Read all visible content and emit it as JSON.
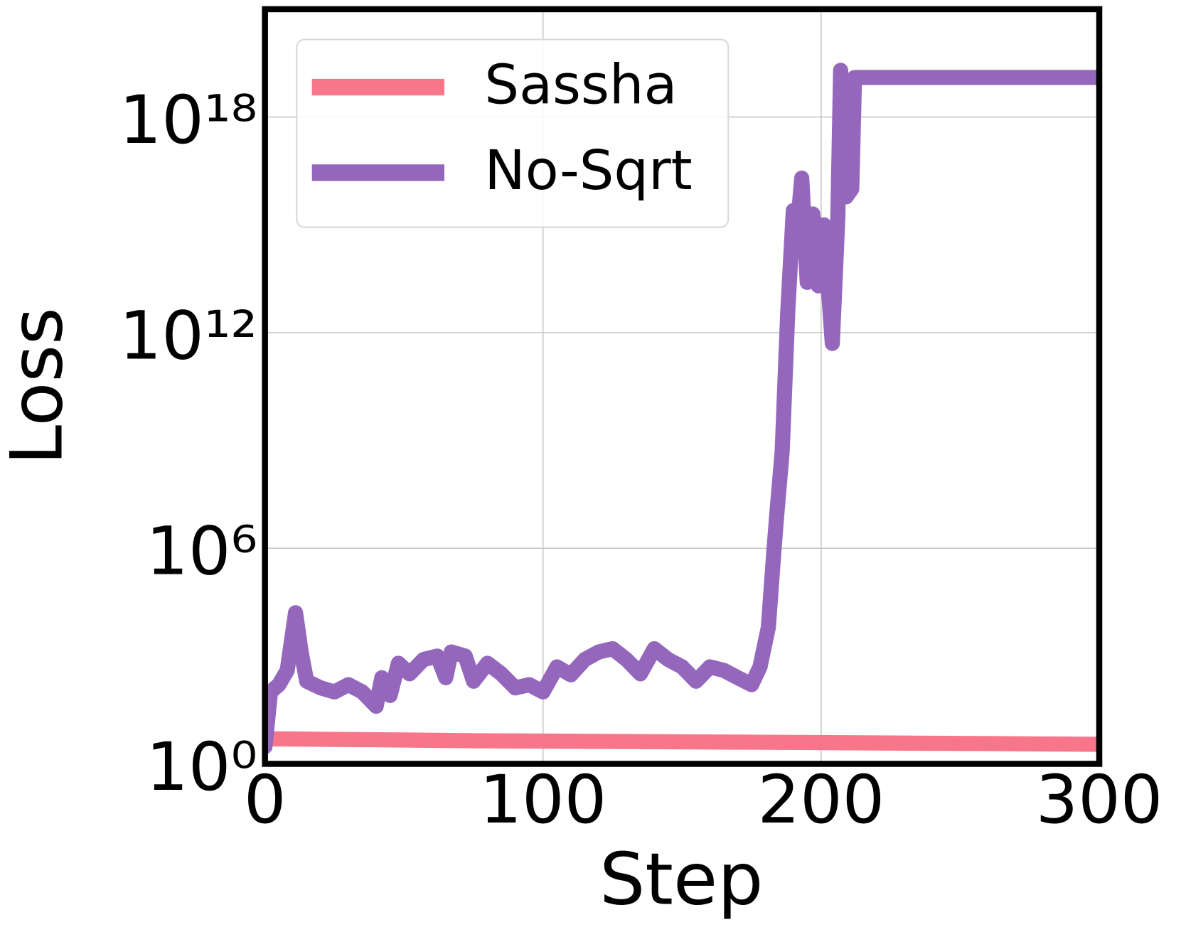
{
  "chart_data": {
    "type": "line",
    "xlabel": "Step",
    "ylabel": "Loss",
    "xlim": [
      0,
      300
    ],
    "xticks": [
      0,
      100,
      200,
      300
    ],
    "ylim": [
      1,
      1e+21
    ],
    "ylog": true,
    "yticks": [
      {
        "value": 1,
        "label": "10⁰"
      },
      {
        "value": 1000000,
        "label": "10⁶"
      },
      {
        "value": 1000000000000,
        "label": "10¹²"
      },
      {
        "value": 1e+18,
        "label": "10¹⁸"
      }
    ],
    "grid": true,
    "legend": "upper left",
    "series": [
      {
        "name": "Sassha",
        "color": "#f7768a",
        "x": [
          0,
          25,
          50,
          75,
          100,
          125,
          150,
          175,
          200,
          225,
          250,
          275,
          300
        ],
        "values": [
          5,
          4.8,
          4.6,
          4.4,
          4.3,
          4.2,
          4.1,
          4,
          3.9,
          3.8,
          3.7,
          3.6,
          3.5
        ]
      },
      {
        "name": "No-Sqrt",
        "color": "#9467bd",
        "x": [
          0,
          2,
          5,
          8,
          11,
          13,
          15,
          20,
          25,
          30,
          35,
          40,
          42,
          45,
          48,
          52,
          57,
          62,
          65,
          67,
          72,
          75,
          80,
          85,
          90,
          95,
          100,
          105,
          110,
          115,
          120,
          125,
          130,
          135,
          140,
          145,
          150,
          155,
          160,
          165,
          170,
          175,
          178,
          181,
          183,
          184,
          186,
          188,
          190,
          191,
          193,
          195,
          197,
          199,
          201,
          204,
          206,
          207,
          209,
          211,
          212,
          215,
          300
        ],
        "values": [
          3,
          100,
          160,
          400,
          16000,
          1300,
          200,
          130,
          100,
          160,
          100,
          40,
          250,
          80,
          630,
          320,
          800,
          1000,
          250,
          1300,
          1000,
          200,
          630,
          320,
          130,
          160,
          100,
          500,
          300,
          800,
          1300,
          1600,
          800,
          320,
          1600,
          800,
          500,
          200,
          500,
          400,
          250,
          160,
          500,
          6300,
          800000,
          8000000,
          500000000,
          4000000000000,
          2500000000000000,
          300000000000000,
          20000000000000000,
          25000000000000,
          2000000000000000,
          20000000000000,
          1000000000000000,
          500000000000,
          1600000000000000,
          2e+19,
          6000000000000000,
          10000000000000000,
          1.26e+19,
          1.26e+19,
          1.26e+19
        ]
      }
    ]
  }
}
